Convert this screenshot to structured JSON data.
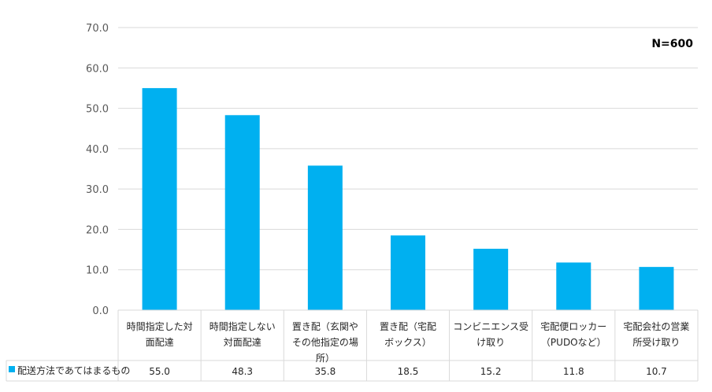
{
  "chart_data": {
    "type": "bar",
    "categories": [
      "時間指定した対面配達",
      "時間指定しない対面配達",
      "置き配（玄関やその他指定の場所）",
      "置き配（宅配ボックス）",
      "コンビニエンス受け取り",
      "宅配便ロッカー（PUDOなど）",
      "宅配会社の営業所受け取り"
    ],
    "category_lines": [
      [
        "時間指定した対",
        "面配達"
      ],
      [
        "時間指定しない",
        "対面配達"
      ],
      [
        "置き配（玄関や",
        "その他指定の場",
        "所）"
      ],
      [
        "置き配（宅配",
        "ボックス）"
      ],
      [
        "コンビニエンス受",
        "け取り"
      ],
      [
        "宅配便ロッカー",
        "（PUDOなど）"
      ],
      [
        "宅配会社の営業",
        "所受け取り"
      ]
    ],
    "series": [
      {
        "name": "配送方法であてはまるもの",
        "values": [
          55.0,
          48.3,
          35.8,
          18.5,
          15.2,
          11.8,
          10.7
        ],
        "color": "#00B0F0"
      }
    ],
    "value_labels": [
      "55.0",
      "48.3",
      "35.8",
      "18.5",
      "15.2",
      "11.8",
      "10.7"
    ],
    "ylim": [
      0,
      70
    ],
    "yticks": [
      0,
      10,
      20,
      30,
      40,
      50,
      60,
      70
    ],
    "ytick_labels": [
      "0.0",
      "10.0",
      "20.0",
      "30.0",
      "40.0",
      "50.0",
      "60.0",
      "70.0"
    ],
    "grid": true,
    "annotation": "N=600",
    "legend_placement": "bottom-left in data table",
    "grid_color": "#D9D9D9"
  }
}
